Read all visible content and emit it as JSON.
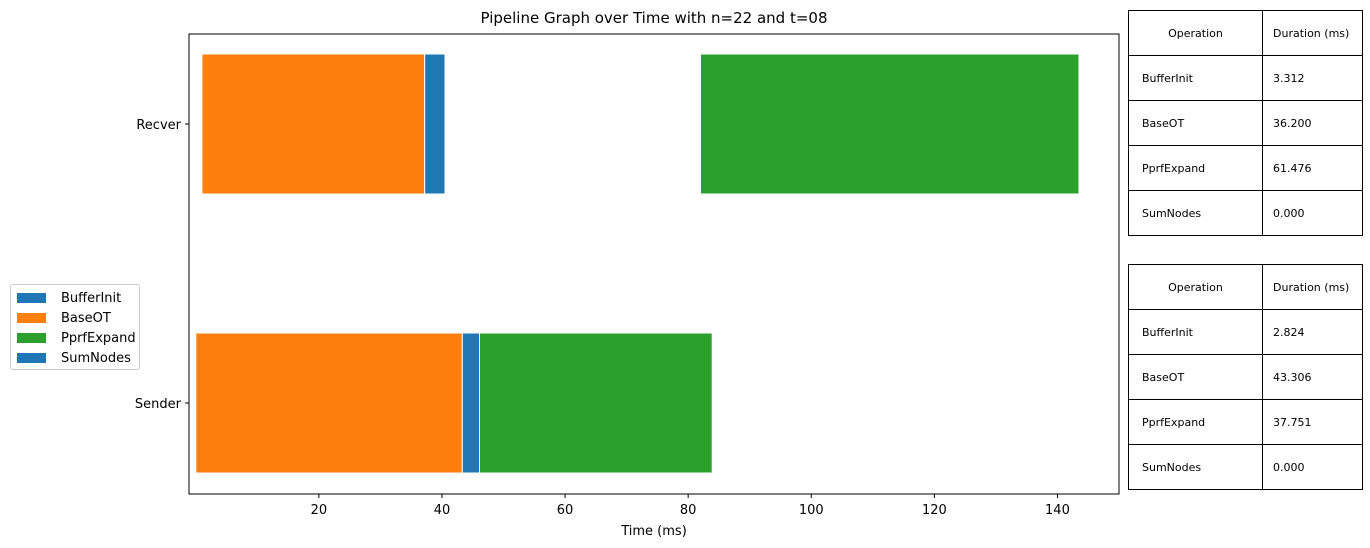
{
  "chart_data": {
    "type": "bar",
    "orientation": "horizontal",
    "stacked_timeline": true,
    "title": "Pipeline Graph over Time with n=22 and t=08",
    "xlabel": "Time (ms)",
    "ylabel": "",
    "xlim": [
      0,
      150
    ],
    "x_ticks": [
      20,
      40,
      60,
      80,
      100,
      120,
      140
    ],
    "categories": [
      "Recver",
      "Sender"
    ],
    "legend_position": "center-left",
    "colors": {
      "BufferInit": "#1f77b4",
      "BaseOT": "#ff7f0e",
      "PprfExpand": "#2ca02c",
      "SumNodes": "#1f77b4"
    },
    "segments": [
      {
        "row": "Recver",
        "operation": "BaseOT",
        "start": 1.0,
        "end": 37.2
      },
      {
        "row": "Recver",
        "operation": "BufferInit",
        "start": 37.2,
        "end": 40.5
      },
      {
        "row": "Recver",
        "operation": "PprfExpand",
        "start": 82.0,
        "end": 143.5
      },
      {
        "row": "Sender",
        "operation": "BaseOT",
        "start": 0.0,
        "end": 43.3
      },
      {
        "row": "Sender",
        "operation": "BufferInit",
        "start": 43.3,
        "end": 46.1
      },
      {
        "row": "Sender",
        "operation": "PprfExpand",
        "start": 46.1,
        "end": 83.9
      }
    ]
  },
  "legend": [
    "BufferInit",
    "BaseOT",
    "PprfExpand",
    "SumNodes"
  ],
  "tables": {
    "recver": {
      "headers": [
        "Operation",
        "Duration (ms)"
      ],
      "rows": [
        [
          "BufferInit",
          "3.312"
        ],
        [
          "BaseOT",
          "36.200"
        ],
        [
          "PprfExpand",
          "61.476"
        ],
        [
          "SumNodes",
          "0.000"
        ]
      ]
    },
    "sender": {
      "headers": [
        "Operation",
        "Duration (ms)"
      ],
      "rows": [
        [
          "BufferInit",
          "2.824"
        ],
        [
          "BaseOT",
          "43.306"
        ],
        [
          "PprfExpand",
          "37.751"
        ],
        [
          "SumNodes",
          "0.000"
        ]
      ]
    }
  }
}
